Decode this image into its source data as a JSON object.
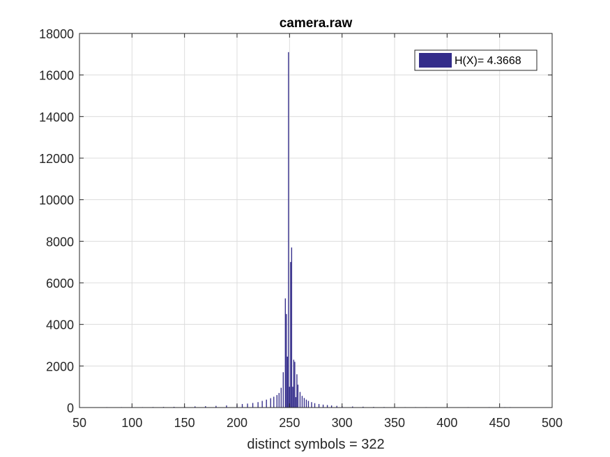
{
  "chart_data": {
    "type": "bar",
    "title": "camera.raw",
    "xlabel": "distinct symbols = 322",
    "ylabel": "",
    "xlim": [
      50,
      500
    ],
    "ylim": [
      0,
      18000
    ],
    "xticks": [
      50,
      100,
      150,
      200,
      250,
      300,
      350,
      400,
      450,
      500
    ],
    "yticks": [
      0,
      2000,
      4000,
      6000,
      8000,
      10000,
      12000,
      14000,
      16000,
      18000
    ],
    "grid": true,
    "legend_position": "top-right",
    "bar_color": "#332c8a",
    "series": [
      {
        "name": "H(X)= 4.3668",
        "x": [
          76,
          90,
          100,
          110,
          120,
          130,
          140,
          150,
          160,
          170,
          180,
          190,
          200,
          205,
          210,
          215,
          220,
          224,
          228,
          232,
          235,
          238,
          240,
          242,
          244,
          246,
          247,
          248,
          249,
          250,
          251,
          252,
          253,
          254,
          255,
          256,
          257,
          258,
          260,
          262,
          264,
          266,
          268,
          271,
          274,
          278,
          282,
          286,
          290,
          295,
          300,
          310,
          320,
          330,
          340,
          350,
          360,
          370,
          380,
          400,
          420,
          440,
          455,
          460
        ],
        "values": [
          10,
          10,
          15,
          20,
          25,
          30,
          35,
          45,
          55,
          65,
          80,
          100,
          150,
          170,
          190,
          220,
          260,
          320,
          380,
          450,
          520,
          600,
          700,
          950,
          1700,
          5250,
          4500,
          2450,
          17100,
          1000,
          7000,
          7700,
          1000,
          2300,
          2200,
          500,
          1600,
          1100,
          750,
          560,
          460,
          380,
          320,
          260,
          210,
          170,
          140,
          120,
          100,
          80,
          60,
          50,
          40,
          30,
          25,
          20,
          18,
          15,
          12,
          10,
          8,
          6,
          5,
          3
        ]
      }
    ]
  }
}
